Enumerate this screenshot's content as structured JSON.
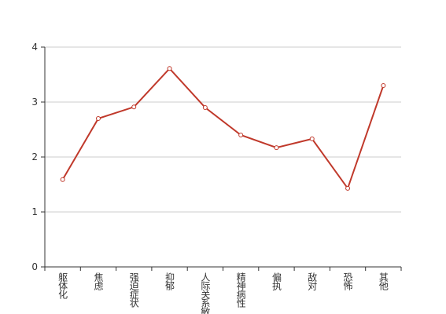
{
  "chart_data": {
    "type": "line",
    "categories": [
      "躯体化",
      "焦虑",
      "强迫症状",
      "抑郁",
      "人际关系敏感",
      "精神病性",
      "偏执",
      "敌对",
      "恐怖",
      "其他"
    ],
    "values": [
      1.59,
      2.7,
      2.91,
      3.61,
      2.9,
      2.4,
      2.17,
      2.33,
      1.43,
      3.3
    ],
    "color": "#c0392b",
    "ylim": [
      0,
      4
    ],
    "yticks": [
      0,
      1,
      2,
      3,
      4
    ],
    "grid": true
  }
}
